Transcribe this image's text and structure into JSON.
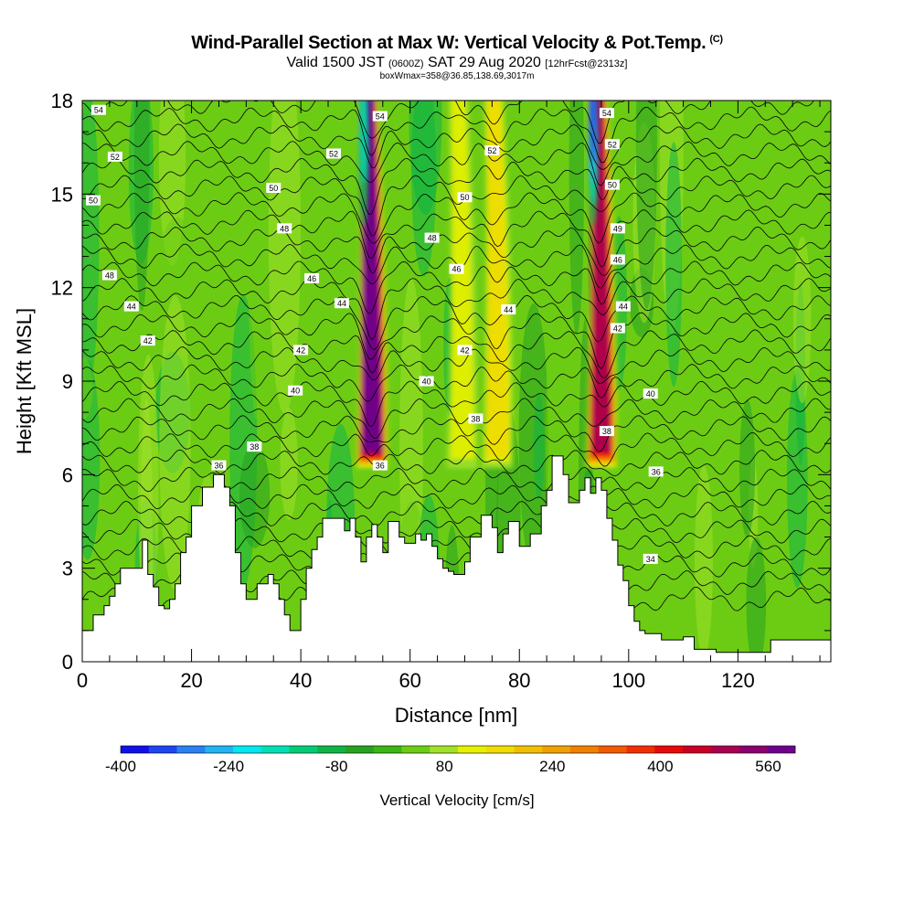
{
  "header": {
    "title": "Wind-Parallel Section at Max W: Vertical Velocity & Pot.Temp.",
    "title_units": "(C)",
    "valid_prefix": "Valid 1500 JST",
    "valid_z": "(0600Z)",
    "valid_date": "SAT 29 Aug 2020",
    "forecast": "[12hrFcst@2313z]",
    "box_info": "boxWmax=358@36.85,138.69,3017m"
  },
  "chart_data": {
    "type": "heatmap",
    "xlabel": "Distance [nm]",
    "ylabel": "Height [Kft MSL]",
    "xlim": [
      0,
      137
    ],
    "ylim": [
      0,
      18
    ],
    "x_ticks": [
      "0",
      "20",
      "40",
      "60",
      "80",
      "100",
      "120"
    ],
    "y_ticks": [
      "0",
      "3",
      "6",
      "9",
      "12",
      "15",
      "18"
    ],
    "colorbar": {
      "title": "Vertical Velocity [cm/s]",
      "range": [
        -400,
        600
      ],
      "ticks": [
        "-400",
        "-240",
        "-80",
        "80",
        "240",
        "400",
        "560"
      ],
      "colors": [
        "#1010e8",
        "#1e46f0",
        "#2a80f0",
        "#22b4f0",
        "#00e8f0",
        "#00e0b4",
        "#00cc78",
        "#10b446",
        "#28a020",
        "#3cb414",
        "#6ccc14",
        "#a0e028",
        "#e6f000",
        "#f0dc00",
        "#f0c000",
        "#f0a000",
        "#f08000",
        "#f05a00",
        "#f03000",
        "#e60a0a",
        "#c80028",
        "#aa0050",
        "#8c0070",
        "#6e008c"
      ]
    },
    "updrafts": [
      {
        "x": 53,
        "vmax": 560
      },
      {
        "x": 69.5,
        "vmax": 120
      },
      {
        "x": 76,
        "vmax": 180
      },
      {
        "x": 95,
        "vmax": 500
      }
    ],
    "downdrafts": [
      {
        "x": 51.5,
        "vmin": -200
      },
      {
        "x": 93.5,
        "vmin": -320
      }
    ],
    "theta_contour_labels": [
      {
        "text": "54",
        "x": 3,
        "y": 17.7
      },
      {
        "text": "52",
        "x": 6,
        "y": 16.2
      },
      {
        "text": "50",
        "x": 2,
        "y": 14.8
      },
      {
        "text": "48",
        "x": 5,
        "y": 12.4
      },
      {
        "text": "44",
        "x": 9,
        "y": 11.4
      },
      {
        "text": "42",
        "x": 12,
        "y": 10.3
      },
      {
        "text": "36",
        "x": 25,
        "y": 6.3
      },
      {
        "text": "38",
        "x": 31.5,
        "y": 6.9
      },
      {
        "text": "40",
        "x": 39,
        "y": 8.7
      },
      {
        "text": "42",
        "x": 40,
        "y": 10.0
      },
      {
        "text": "46",
        "x": 42,
        "y": 12.3
      },
      {
        "text": "44",
        "x": 47.5,
        "y": 11.5
      },
      {
        "text": "48",
        "x": 37,
        "y": 13.9
      },
      {
        "text": "50",
        "x": 35,
        "y": 15.2
      },
      {
        "text": "52",
        "x": 46,
        "y": 16.3
      },
      {
        "text": "54",
        "x": 54.5,
        "y": 17.5
      },
      {
        "text": "36",
        "x": 54.5,
        "y": 6.3
      },
      {
        "text": "40",
        "x": 63,
        "y": 9.0
      },
      {
        "text": "48",
        "x": 64,
        "y": 13.6
      },
      {
        "text": "46",
        "x": 68.5,
        "y": 12.6
      },
      {
        "text": "50",
        "x": 70,
        "y": 14.9
      },
      {
        "text": "42",
        "x": 70,
        "y": 10.0
      },
      {
        "text": "52",
        "x": 75,
        "y": 16.4
      },
      {
        "text": "38",
        "x": 72,
        "y": 7.8
      },
      {
        "text": "44",
        "x": 78,
        "y": 11.3
      },
      {
        "text": "54",
        "x": 96,
        "y": 17.6
      },
      {
        "text": "52",
        "x": 97,
        "y": 16.6
      },
      {
        "text": "50",
        "x": 97,
        "y": 15.3
      },
      {
        "text": "49",
        "x": 98,
        "y": 13.9
      },
      {
        "text": "46",
        "x": 98,
        "y": 12.9
      },
      {
        "text": "44",
        "x": 99,
        "y": 11.4
      },
      {
        "text": "42",
        "x": 98,
        "y": 10.7
      },
      {
        "text": "40",
        "x": 104,
        "y": 8.6
      },
      {
        "text": "38",
        "x": 96,
        "y": 7.4
      },
      {
        "text": "36",
        "x": 105,
        "y": 6.1
      },
      {
        "text": "34",
        "x": 104,
        "y": 3.3
      }
    ],
    "terrain": [
      [
        0,
        1
      ],
      [
        2,
        1
      ],
      [
        2,
        1.5
      ],
      [
        4,
        1.5
      ],
      [
        4,
        1.8
      ],
      [
        5,
        1.8
      ],
      [
        5,
        2.1
      ],
      [
        6,
        2.1
      ],
      [
        6,
        2.5
      ],
      [
        7,
        2.5
      ],
      [
        7,
        3
      ],
      [
        11,
        3
      ],
      [
        11,
        3.9
      ],
      [
        12,
        3.9
      ],
      [
        12,
        2.8
      ],
      [
        13,
        2.8
      ],
      [
        13,
        2.4
      ],
      [
        14,
        2.4
      ],
      [
        14,
        1.8
      ],
      [
        15,
        1.8
      ],
      [
        15,
        1.7
      ],
      [
        16,
        1.7
      ],
      [
        16,
        2
      ],
      [
        17,
        2
      ],
      [
        17,
        2.5
      ],
      [
        18,
        2.5
      ],
      [
        18,
        3.5
      ],
      [
        19,
        3.5
      ],
      [
        19,
        4
      ],
      [
        20,
        4
      ],
      [
        20,
        5
      ],
      [
        22,
        5
      ],
      [
        22,
        5.6
      ],
      [
        24,
        5.6
      ],
      [
        24,
        6
      ],
      [
        26,
        6
      ],
      [
        26,
        5.6
      ],
      [
        27,
        5.6
      ],
      [
        27,
        5
      ],
      [
        28,
        5
      ],
      [
        28,
        3.5
      ],
      [
        29,
        3.5
      ],
      [
        29,
        2.5
      ],
      [
        30,
        2.5
      ],
      [
        30,
        2
      ],
      [
        32,
        2
      ],
      [
        32,
        2.5
      ],
      [
        34,
        2.5
      ],
      [
        34,
        2.8
      ],
      [
        35,
        2.8
      ],
      [
        35,
        2.5
      ],
      [
        36,
        2.5
      ],
      [
        36,
        2
      ],
      [
        37,
        2
      ],
      [
        37,
        1.5
      ],
      [
        38,
        1.5
      ],
      [
        38,
        1
      ],
      [
        40,
        1
      ],
      [
        40,
        2
      ],
      [
        41,
        2
      ],
      [
        41,
        3
      ],
      [
        42,
        3
      ],
      [
        42,
        3.6
      ],
      [
        43,
        3.6
      ],
      [
        43,
        4
      ],
      [
        44,
        4
      ],
      [
        44,
        4.6
      ],
      [
        48,
        4.6
      ],
      [
        48,
        4.2
      ],
      [
        49,
        4.2
      ],
      [
        49,
        4.6
      ],
      [
        50,
        4.6
      ],
      [
        50,
        4
      ],
      [
        51,
        4
      ],
      [
        51,
        3.2
      ],
      [
        52,
        3.2
      ],
      [
        52,
        4
      ],
      [
        53,
        4
      ],
      [
        53,
        4.4
      ],
      [
        54,
        4.4
      ],
      [
        54,
        4
      ],
      [
        55,
        4
      ],
      [
        55,
        3.5
      ],
      [
        56,
        3.5
      ],
      [
        56,
        4.5
      ],
      [
        58,
        4.5
      ],
      [
        58,
        4
      ],
      [
        59,
        4
      ],
      [
        59,
        3.8
      ],
      [
        61,
        3.8
      ],
      [
        61,
        4.1
      ],
      [
        62,
        4.1
      ],
      [
        62,
        3.9
      ],
      [
        63,
        3.9
      ],
      [
        63,
        4.1
      ],
      [
        64,
        4.1
      ],
      [
        64,
        3.7
      ],
      [
        65,
        3.7
      ],
      [
        65,
        3.3
      ],
      [
        66,
        3.3
      ],
      [
        66,
        3
      ],
      [
        67,
        3
      ],
      [
        67,
        2.9
      ],
      [
        68,
        2.9
      ],
      [
        68,
        2.8
      ],
      [
        70,
        2.8
      ],
      [
        70,
        3.2
      ],
      [
        71,
        3.2
      ],
      [
        71,
        4
      ],
      [
        73,
        4
      ],
      [
        73,
        4.7
      ],
      [
        75,
        4.7
      ],
      [
        75,
        4.3
      ],
      [
        76,
        4.3
      ],
      [
        76,
        3.5
      ],
      [
        77,
        3.5
      ],
      [
        77,
        4.1
      ],
      [
        78,
        4.1
      ],
      [
        78,
        4.5
      ],
      [
        80,
        4.5
      ],
      [
        80,
        3.7
      ],
      [
        82,
        3.7
      ],
      [
        82,
        4.1
      ],
      [
        84,
        4.1
      ],
      [
        84,
        5
      ],
      [
        85,
        5
      ],
      [
        85,
        5.5
      ],
      [
        86,
        5.5
      ],
      [
        86,
        6.6
      ],
      [
        88,
        6.6
      ],
      [
        88,
        6
      ],
      [
        89,
        6
      ],
      [
        89,
        5.1
      ],
      [
        91,
        5.1
      ],
      [
        91,
        5.5
      ],
      [
        92,
        5.5
      ],
      [
        92,
        5.9
      ],
      [
        93,
        5.9
      ],
      [
        93,
        5.4
      ],
      [
        94,
        5.4
      ],
      [
        94,
        5.9
      ],
      [
        95,
        5.9
      ],
      [
        95,
        5.5
      ],
      [
        96,
        5.5
      ],
      [
        96,
        4.6
      ],
      [
        97,
        4.6
      ],
      [
        97,
        3.9
      ],
      [
        98,
        3.9
      ],
      [
        98,
        3.1
      ],
      [
        99,
        3.1
      ],
      [
        99,
        2.6
      ],
      [
        100,
        2.6
      ],
      [
        100,
        1.8
      ],
      [
        101,
        1.8
      ],
      [
        101,
        1.3
      ],
      [
        102,
        1.3
      ],
      [
        102,
        1
      ],
      [
        103,
        1
      ],
      [
        103,
        0.9
      ],
      [
        106,
        0.9
      ],
      [
        106,
        0.7
      ],
      [
        110,
        0.7
      ],
      [
        110,
        0.8
      ],
      [
        112,
        0.8
      ],
      [
        112,
        0.4
      ],
      [
        116,
        0.4
      ],
      [
        116,
        0.3
      ],
      [
        126,
        0.3
      ],
      [
        126,
        0.7
      ],
      [
        137,
        0.7
      ],
      [
        137,
        0
      ]
    ]
  }
}
